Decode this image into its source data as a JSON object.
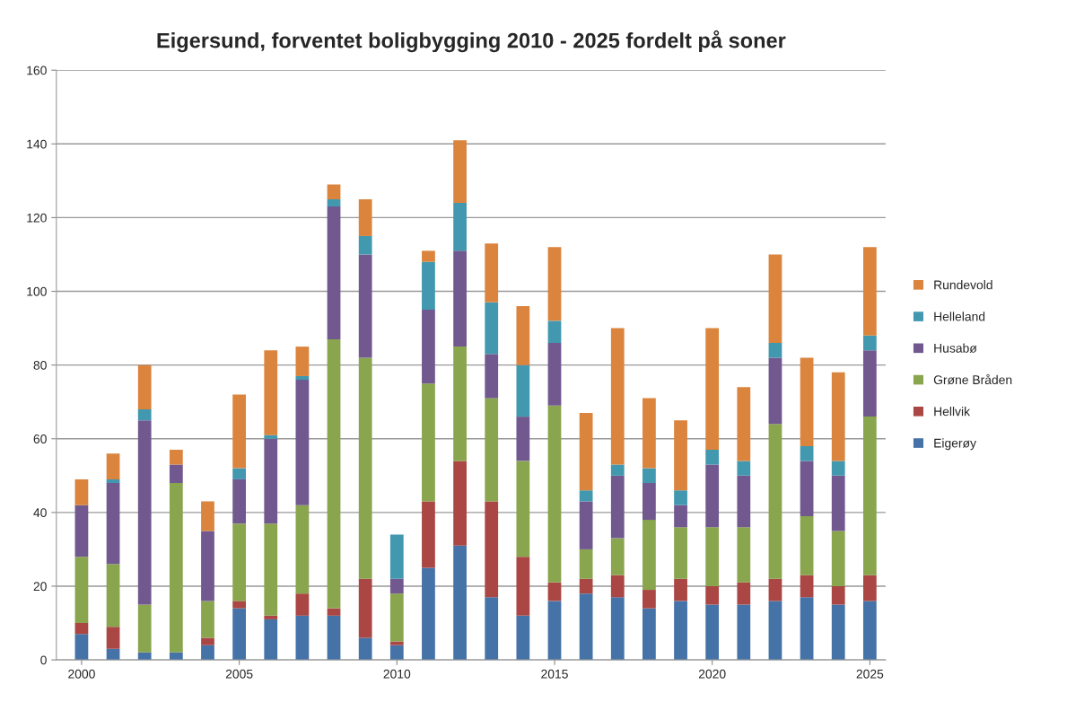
{
  "chart_data": {
    "type": "bar",
    "stacked": true,
    "title": "Eigersund, forventet boligbygging 2010 - 2025 fordelt på soner",
    "x": [
      2000,
      2001,
      2002,
      2003,
      2004,
      2005,
      2006,
      2007,
      2008,
      2009,
      2010,
      2011,
      2012,
      2013,
      2014,
      2015,
      2016,
      2017,
      2018,
      2019,
      2020,
      2021,
      2022,
      2023,
      2024,
      2025
    ],
    "xlim": [
      1999.2,
      2025.5
    ],
    "xticks": [
      2000,
      2005,
      2010,
      2015,
      2020,
      2025
    ],
    "ylim": [
      0,
      160
    ],
    "yticks": [
      0,
      20,
      40,
      60,
      80,
      100,
      120,
      140,
      160
    ],
    "grid": "y",
    "legend": "right",
    "series": [
      {
        "name": "Eigerøy",
        "color": "#4572a7",
        "values": [
          7,
          3,
          2,
          2,
          4,
          14,
          11,
          12,
          12,
          6,
          4,
          25,
          31,
          17,
          12,
          16,
          18,
          17,
          14,
          16,
          15,
          15,
          16,
          17,
          15,
          16
        ]
      },
      {
        "name": "Hellvik",
        "color": "#aa4643",
        "values": [
          3,
          6,
          0,
          0,
          2,
          2,
          1,
          6,
          2,
          16,
          1,
          18,
          23,
          26,
          16,
          5,
          4,
          6,
          5,
          6,
          5,
          6,
          6,
          6,
          5,
          7
        ]
      },
      {
        "name": "Grøne Bråden",
        "color": "#89a54e",
        "values": [
          18,
          17,
          13,
          46,
          10,
          21,
          25,
          24,
          73,
          60,
          13,
          32,
          31,
          28,
          26,
          48,
          8,
          10,
          19,
          14,
          16,
          15,
          42,
          16,
          15,
          43
        ]
      },
      {
        "name": "Husabø",
        "color": "#71588f",
        "values": [
          14,
          22,
          50,
          5,
          19,
          12,
          23,
          34,
          36,
          28,
          4,
          20,
          26,
          12,
          12,
          17,
          13,
          17,
          10,
          6,
          17,
          14,
          18,
          15,
          15,
          18
        ]
      },
      {
        "name": "Helleland",
        "color": "#4198af",
        "values": [
          0,
          1,
          3,
          0,
          0,
          3,
          1,
          1,
          2,
          5,
          12,
          13,
          13,
          14,
          14,
          6,
          3,
          3,
          4,
          4,
          4,
          4,
          4,
          4,
          4,
          4
        ]
      },
      {
        "name": "Rundevold",
        "color": "#db843d",
        "values": [
          7,
          7,
          12,
          4,
          8,
          20,
          23,
          8,
          4,
          10,
          0,
          3,
          17,
          16,
          16,
          20,
          21,
          37,
          19,
          19,
          33,
          20,
          24,
          24,
          24,
          24
        ]
      }
    ]
  }
}
